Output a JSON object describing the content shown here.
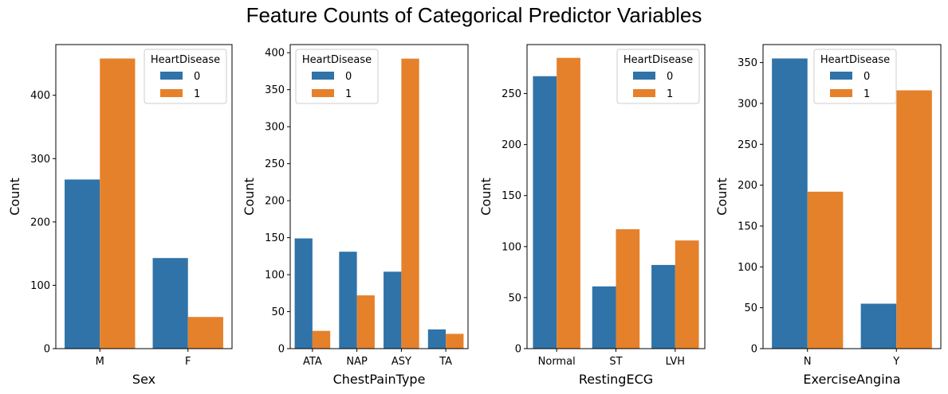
{
  "figure": {
    "title": "Feature Counts of Categorical Predictor Variables"
  },
  "colors": {
    "series0": "#2f73a8",
    "series1": "#e5812b",
    "axis": "#000000"
  },
  "chart_data": [
    {
      "type": "bar",
      "xlabel": "Sex",
      "ylabel": "Count",
      "categories": [
        "M",
        "F"
      ],
      "ylim": [
        0,
        480
      ],
      "yticks": [
        0,
        100,
        200,
        300,
        400
      ],
      "legend": {
        "title": "HeartDisease",
        "position": "top-right"
      },
      "series": [
        {
          "name": "0",
          "values": [
            267,
            143
          ]
        },
        {
          "name": "1",
          "values": [
            458,
            50
          ]
        }
      ]
    },
    {
      "type": "bar",
      "xlabel": "ChestPainType",
      "ylabel": "Count",
      "categories": [
        "ATA",
        "NAP",
        "ASY",
        "TA"
      ],
      "ylim": [
        0,
        411
      ],
      "yticks": [
        0,
        50,
        100,
        150,
        200,
        250,
        300,
        350,
        400
      ],
      "legend": {
        "title": "HeartDisease",
        "position": "top-left"
      },
      "series": [
        {
          "name": "0",
          "values": [
            149,
            131,
            104,
            26
          ]
        },
        {
          "name": "1",
          "values": [
            24,
            72,
            392,
            20
          ]
        }
      ]
    },
    {
      "type": "bar",
      "xlabel": "RestingECG",
      "ylabel": "Count",
      "categories": [
        "Normal",
        "ST",
        "LVH"
      ],
      "ylim": [
        0,
        298
      ],
      "yticks": [
        0,
        50,
        100,
        150,
        200,
        250
      ],
      "legend": {
        "title": "HeartDisease",
        "position": "top-right"
      },
      "series": [
        {
          "name": "0",
          "values": [
            267,
            61,
            82
          ]
        },
        {
          "name": "1",
          "values": [
            285,
            117,
            106
          ]
        }
      ]
    },
    {
      "type": "bar",
      "xlabel": "ExerciseAngina",
      "ylabel": "Count",
      "categories": [
        "N",
        "Y"
      ],
      "ylim": [
        0,
        372
      ],
      "yticks": [
        0,
        50,
        100,
        150,
        200,
        250,
        300,
        350
      ],
      "legend": {
        "title": "HeartDisease",
        "position": "top-center"
      },
      "series": [
        {
          "name": "0",
          "values": [
            355,
            55
          ]
        },
        {
          "name": "1",
          "values": [
            192,
            316
          ]
        }
      ]
    }
  ]
}
